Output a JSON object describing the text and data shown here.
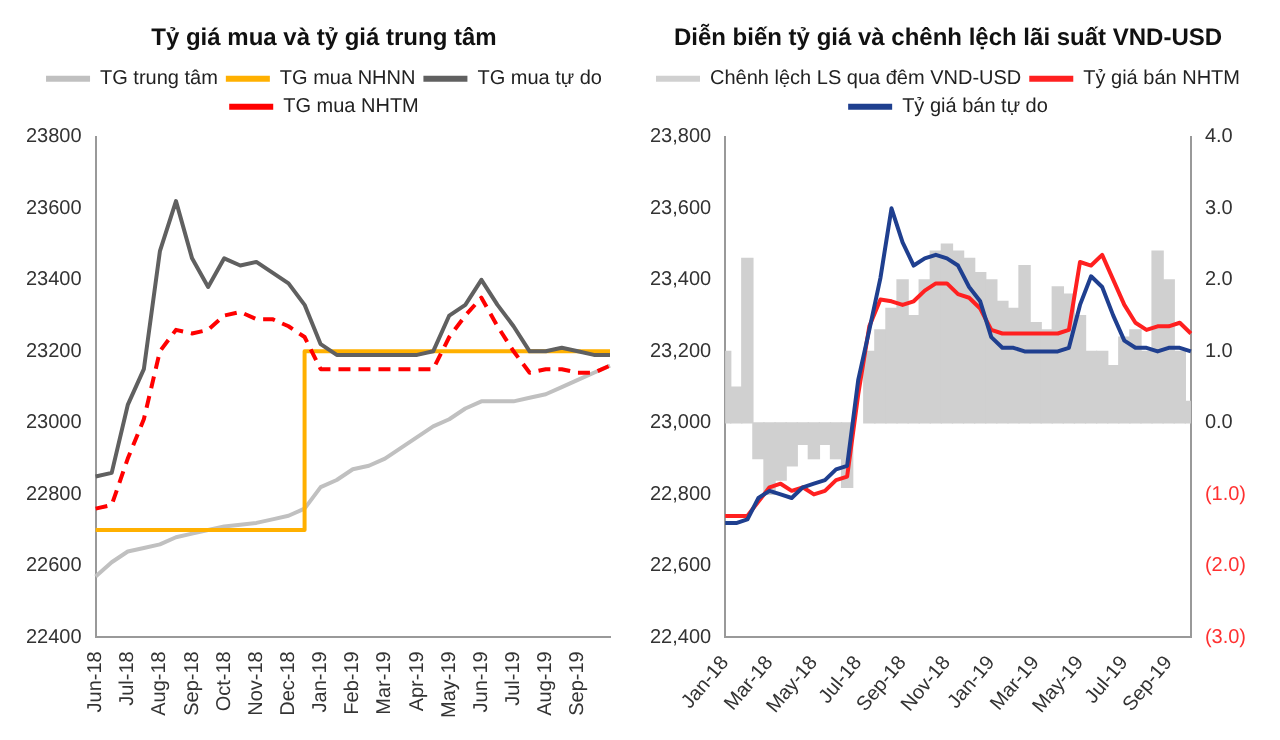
{
  "chart_data": [
    {
      "type": "line",
      "title": "Tỷ giá mua và tỷ giá trung tâm",
      "categories": [
        "Jun-18",
        null,
        "Jul-18",
        null,
        "Aug-18",
        null,
        "Sep-18",
        null,
        "Oct-18",
        null,
        "Nov-18",
        null,
        "Dec-18",
        null,
        "Jan-19",
        null,
        "Feb-19",
        null,
        "Mar-19",
        null,
        "Apr-19",
        null,
        "May-19",
        null,
        "Jun-19",
        null,
        "Jul-19",
        null,
        "Aug-19",
        null,
        "Sep-19",
        null,
        null
      ],
      "ylim": [
        22400,
        23800
      ],
      "yticks": [
        22400,
        22600,
        22800,
        23000,
        23200,
        23400,
        23600,
        23800
      ],
      "grid": false,
      "legend": "top",
      "marker": "none",
      "series": [
        {
          "name": "TG trung tâm",
          "color": "#c0c0c0",
          "values": [
            22570,
            22610,
            22640,
            22650,
            22660,
            22680,
            22690,
            22700,
            22710,
            22715,
            22720,
            22730,
            22740,
            22760,
            22820,
            22840,
            22870,
            22880,
            22900,
            22930,
            22960,
            22990,
            23010,
            23040,
            23060,
            23060,
            23060,
            23070,
            23080,
            23100,
            23120,
            23140,
            23160
          ]
        },
        {
          "name": "TG mua NHNN",
          "type": "step",
          "color": "#ffb000",
          "values": [
            22700,
            22700,
            22700,
            22700,
            22700,
            22700,
            22700,
            22700,
            22700,
            22700,
            22700,
            22700,
            22700,
            22700,
            23200,
            23200,
            23200,
            23200,
            23200,
            23200,
            23200,
            23200,
            23200,
            23200,
            23200,
            23200,
            23200,
            23200,
            23200,
            23200,
            23200,
            23200,
            23200
          ]
        },
        {
          "name": "TG mua tự do",
          "color": "#606060",
          "values": [
            22850,
            22860,
            23050,
            23150,
            23480,
            23620,
            23460,
            23380,
            23460,
            23440,
            23450,
            23420,
            23390,
            23330,
            23220,
            23190,
            23190,
            23190,
            23190,
            23190,
            23190,
            23200,
            23300,
            23330,
            23400,
            23330,
            23270,
            23200,
            23200,
            23210,
            23200,
            23190,
            23190
          ]
        },
        {
          "name": "TG mua NHTM",
          "color": "#ff0000",
          "line_style": "dashed",
          "values": [
            22760,
            22770,
            22900,
            23010,
            23200,
            23260,
            23250,
            23260,
            23300,
            23310,
            23290,
            23290,
            23270,
            23240,
            23150,
            23150,
            23150,
            23150,
            23150,
            23150,
            23150,
            23150,
            23240,
            23300,
            23350,
            23270,
            23200,
            23140,
            23150,
            23150,
            23140,
            23140,
            23160
          ]
        }
      ]
    },
    {
      "type": "line",
      "title": "Diễn biến tỷ giá và chênh lệch lãi suất VND-USD",
      "categories": [
        "Jan-18",
        null,
        null,
        null,
        "Mar-18",
        null,
        null,
        null,
        "May-18",
        null,
        null,
        null,
        "Jul-18",
        null,
        null,
        null,
        "Sep-18",
        null,
        null,
        null,
        "Nov-18",
        null,
        null,
        null,
        "Jan-19",
        null,
        null,
        null,
        "Mar-19",
        null,
        null,
        null,
        "May-19",
        null,
        null,
        null,
        "Jul-19",
        null,
        null,
        null,
        "Sep-19",
        null,
        null
      ],
      "ylim": [
        22400,
        23800
      ],
      "yticks": [
        {
          "value": 22400,
          "label": "22,400"
        },
        {
          "value": 22600,
          "label": "22,600"
        },
        {
          "value": 22800,
          "label": "22,800"
        },
        {
          "value": 23000,
          "label": "23,000"
        },
        {
          "value": 23200,
          "label": "23,200"
        },
        {
          "value": 23400,
          "label": "23,400"
        },
        {
          "value": 23600,
          "label": "23,600"
        },
        {
          "value": 23800,
          "label": "23,800"
        }
      ],
      "y2lim": [
        -3,
        4
      ],
      "y2ticks": [
        {
          "value": -3,
          "label": "(3.0)"
        },
        {
          "value": -2,
          "label": "(2.0)"
        },
        {
          "value": -1,
          "label": "(1.0)"
        },
        {
          "value": 0,
          "label": "0.0"
        },
        {
          "value": 1,
          "label": "1.0"
        },
        {
          "value": 2,
          "label": "2.0"
        },
        {
          "value": 3,
          "label": "3.0"
        },
        {
          "value": 4,
          "label": "4.0"
        }
      ],
      "grid": false,
      "legend": "top",
      "marker": "none",
      "series": [
        {
          "name": "Chênh lệch LS qua đêm VND-USD",
          "type": "bar",
          "axis": "y2",
          "color": "#d0d0d0",
          "values": [
            1.0,
            0.5,
            2.3,
            -0.5,
            -1.0,
            -0.8,
            -0.6,
            -0.3,
            -0.5,
            -0.3,
            -0.5,
            -0.9,
            null,
            1.0,
            1.3,
            1.6,
            2.0,
            1.5,
            2.0,
            2.4,
            2.5,
            2.4,
            2.3,
            2.1,
            2.0,
            1.7,
            1.6,
            2.2,
            1.4,
            1.3,
            1.9,
            1.8,
            1.5,
            1.0,
            1.0,
            0.8,
            1.2,
            1.3,
            1.0,
            2.4,
            2.0,
            1.0,
            0.3
          ]
        },
        {
          "name": "Tỷ giá bán NHTM",
          "color": "#ff2020",
          "values": [
            22740,
            22740,
            22740,
            22780,
            22820,
            22830,
            22810,
            22820,
            22800,
            22810,
            22840,
            22850,
            23080,
            23270,
            23345,
            23340,
            23330,
            23340,
            23370,
            23390,
            23390,
            23360,
            23350,
            23320,
            23260,
            23250,
            23250,
            23250,
            23250,
            23250,
            23250,
            23260,
            23450,
            23440,
            23470,
            23400,
            23330,
            23280,
            23260,
            23270,
            23270,
            23280,
            23250
          ]
        },
        {
          "name": "Tỷ giá bán tự do",
          "color": "#1f3f8f",
          "values": [
            22720,
            22720,
            22730,
            22790,
            22810,
            22800,
            22790,
            22820,
            22830,
            22840,
            22870,
            22880,
            23120,
            23260,
            23405,
            23600,
            23505,
            23440,
            23460,
            23470,
            23460,
            23440,
            23380,
            23340,
            23240,
            23210,
            23210,
            23200,
            23200,
            23200,
            23200,
            23210,
            23330,
            23410,
            23380,
            23300,
            23230,
            23210,
            23210,
            23200,
            23210,
            23210,
            23200
          ]
        }
      ]
    }
  ]
}
